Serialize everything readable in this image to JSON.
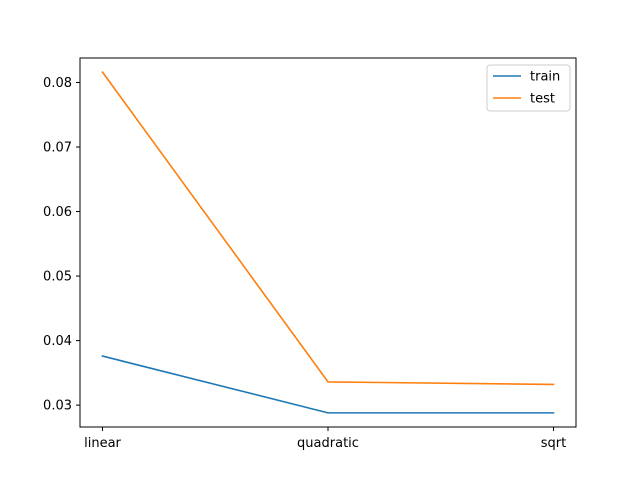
{
  "chart_data": {
    "type": "line",
    "categories": [
      "linear",
      "quadratic",
      "sqrt"
    ],
    "series": [
      {
        "name": "train",
        "color": "#1f77b4",
        "values": [
          0.0376,
          0.0288,
          0.0288
        ]
      },
      {
        "name": "test",
        "color": "#ff7f0e",
        "values": [
          0.0816,
          0.0336,
          0.0332
        ]
      }
    ],
    "y_ticks": [
      0.03,
      0.04,
      0.05,
      0.06,
      0.07,
      0.08
    ],
    "y_tick_labels": [
      "0.03",
      "0.04",
      "0.05",
      "0.06",
      "0.07",
      "0.08"
    ],
    "ylim": [
      0.02661,
      0.08379
    ],
    "grid": false,
    "legend_position": "top-right"
  }
}
